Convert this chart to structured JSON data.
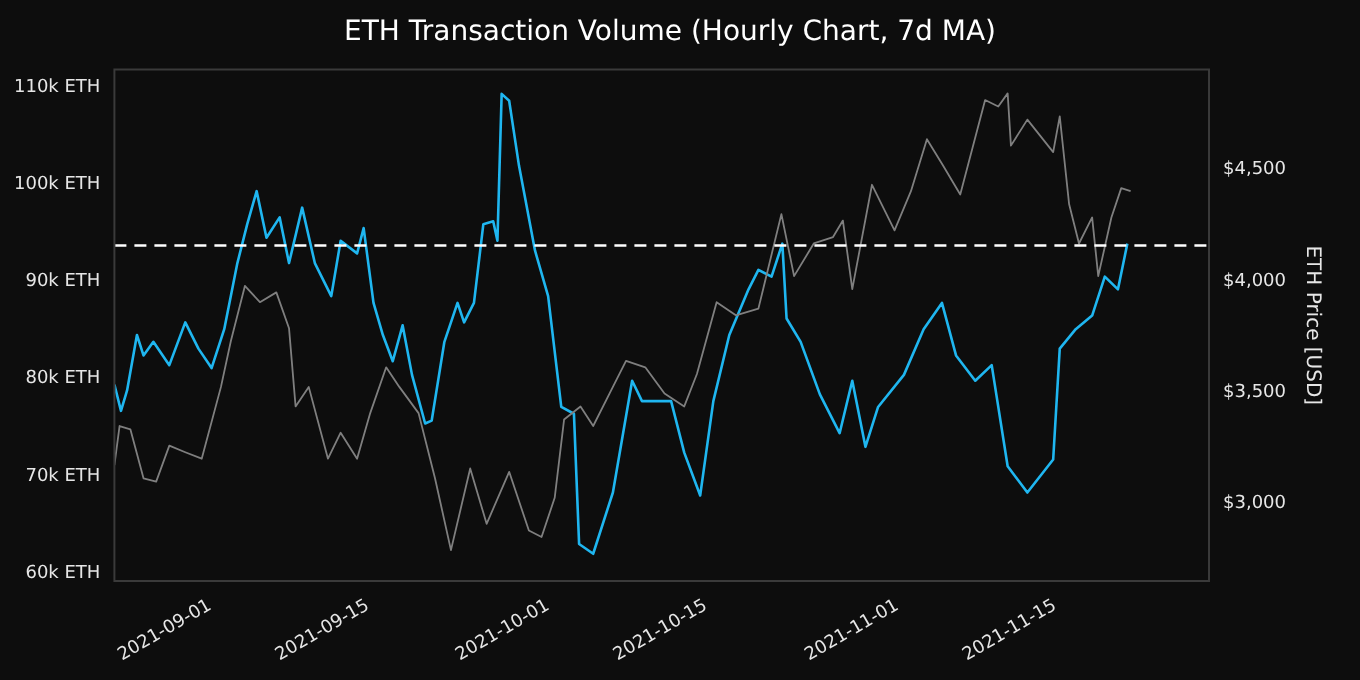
{
  "chart_data": {
    "type": "line",
    "title": "ETH Transaction Volume (Hourly Chart, 7d MA)",
    "y2label": "ETH Price [USD]",
    "xlim": [
      "2021-08-23T12:00",
      "2021-11-28T16:00"
    ],
    "xticks": [
      "2021-09-01",
      "2021-09-15",
      "2021-10-01",
      "2021-10-15",
      "2021-11-01",
      "2021-11-15"
    ],
    "ylim": [
      59200,
      111800
    ],
    "yticks": [
      {
        "value": 60000,
        "label": "60k ETH"
      },
      {
        "value": 70000,
        "label": "70k ETH"
      },
      {
        "value": 80000,
        "label": "80k ETH"
      },
      {
        "value": 90000,
        "label": "90k ETH"
      },
      {
        "value": 100000,
        "label": "100k ETH"
      },
      {
        "value": 110000,
        "label": "110k ETH"
      }
    ],
    "y2lim": [
      2650,
      4950
    ],
    "y2ticks": [
      {
        "value": 3000,
        "label": "$3,000"
      },
      {
        "value": 3500,
        "label": "$3,500"
      },
      {
        "value": 4000,
        "label": "$4,000"
      },
      {
        "value": 4500,
        "label": "$4,500"
      }
    ],
    "grid": false,
    "legend": false,
    "marker": "none",
    "line_style": "solid",
    "ref_lines": [
      {
        "axis": "y",
        "value": 93700,
        "color": "#ffffff",
        "line_style": "dashed"
      }
    ],
    "series": [
      {
        "color": "#7f7f7f",
        "axis": "y2",
        "x": [
          "2021-08-23T12:00",
          "2021-08-23T23:00",
          "2021-08-24T22:00",
          "2021-08-26T02:00",
          "2021-08-27T05:00",
          "2021-08-28T09:00",
          "2021-08-29T19:00",
          "2021-08-31T06:00",
          "2021-09-01T23:00",
          "2021-09-02T20:00",
          "2021-09-04T02:00",
          "2021-09-05T10:00",
          "2021-09-06T21:00",
          "2021-09-08T00:00",
          "2021-09-08T14:00",
          "2021-09-09T18:00",
          "2021-09-11T11:00",
          "2021-09-12T14:00",
          "2021-09-14T01:00",
          "2021-09-15T05:00",
          "2021-09-16T15:00",
          "2021-09-17T19:00",
          "2021-09-19T12:00",
          "2021-09-20T23:00",
          "2021-09-22T09:00",
          "2021-09-24T02:00",
          "2021-09-25T13:00",
          "2021-09-27T13:00",
          "2021-09-29T07:00",
          "2021-09-30T10:00",
          "2021-10-01T14:00",
          "2021-10-02T10:00",
          "2021-10-03T21:00",
          "2021-10-05T00:00",
          "2021-10-06T18:00",
          "2021-10-07T22:00",
          "2021-10-09T15:00",
          "2021-10-11T08:00",
          "2021-10-13T02:00",
          "2021-10-14T05:00",
          "2021-10-15T23:00",
          "2021-10-17T16:00",
          "2021-10-19T16:00",
          "2021-10-21T17:00",
          "2021-10-22T20:00",
          "2021-10-24T14:00",
          "2021-10-26T07:00",
          "2021-10-27T04:00",
          "2021-10-28T00:00",
          "2021-10-29T18:00",
          "2021-10-31T18:00",
          "2021-11-02T05:00",
          "2021-11-03T15:00",
          "2021-11-05T01:00",
          "2021-11-06T14:00",
          "2021-11-08T19:00",
          "2021-11-09T23:00",
          "2021-11-10T19:00",
          "2021-11-11T02:00",
          "2021-11-12T13:00",
          "2021-11-14T20:00",
          "2021-11-15T10:00",
          "2021-11-16T06:00",
          "2021-11-17T03:00",
          "2021-11-18T07:00",
          "2021-11-18T20:00",
          "2021-11-20T00:00",
          "2021-11-20T21:00",
          "2021-11-21T17:00"
        ],
        "values": [
          3171,
          3347,
          3332,
          3112,
          3097,
          3259,
          3229,
          3200,
          3523,
          3728,
          3977,
          3904,
          3948,
          3787,
          3435,
          3523,
          3200,
          3317,
          3200,
          3405,
          3611,
          3523,
          3405,
          3112,
          2789,
          3156,
          2907,
          3141,
          2877,
          2848,
          3024,
          3376,
          3435,
          3347,
          3523,
          3640,
          3611,
          3493,
          3435,
          3581,
          3904,
          3845,
          3875,
          4300,
          4021,
          4168,
          4197,
          4271,
          3963,
          4432,
          4227,
          4403,
          4637,
          4520,
          4388,
          4813,
          4784,
          4843,
          4608,
          4725,
          4579,
          4740,
          4344,
          4168,
          4285,
          4021,
          4285,
          4417,
          4403
        ]
      },
      {
        "color": "#1fb6f0",
        "x": [
          "2021-08-23T12:00",
          "2021-08-24T02:00",
          "2021-08-24T15:00",
          "2021-08-25T12:00",
          "2021-08-26T02:00",
          "2021-08-26T23:00",
          "2021-08-28T09:00",
          "2021-08-29T19:00",
          "2021-08-30T23:00",
          "2021-09-01T03:00",
          "2021-09-02T06:00",
          "2021-09-03T10:00",
          "2021-09-04T07:00",
          "2021-09-05T03:00",
          "2021-09-06T00:00",
          "2021-09-07T04:00",
          "2021-09-08T00:00",
          "2021-09-09T04:00",
          "2021-09-10T07:00",
          "2021-09-11T18:00",
          "2021-09-12T14:00",
          "2021-09-14T01:00",
          "2021-09-14T15:00",
          "2021-09-15T12:00",
          "2021-09-16T08:00",
          "2021-09-17T05:00",
          "2021-09-18T02:00",
          "2021-09-18T22:00",
          "2021-09-20T02:00",
          "2021-09-20T16:00",
          "2021-09-21T19:00",
          "2021-09-22T23:00",
          "2021-09-23T13:00",
          "2021-09-24T10:00",
          "2021-09-25T06:00",
          "2021-09-26T03:00",
          "2021-09-26T12:00",
          "2021-09-26T21:00",
          "2021-09-27T13:00",
          "2021-09-28T10:00",
          "2021-09-28T23:00",
          "2021-09-29T20:00",
          "2021-10-01T00:00",
          "2021-10-02T04:00",
          "2021-10-03T07:00",
          "2021-10-03T18:00",
          "2021-10-05T00:00",
          "2021-10-06T18:00",
          "2021-10-08T11:00",
          "2021-10-09T08:00",
          "2021-10-11T22:00",
          "2021-10-13T02:00",
          "2021-10-14T12:00",
          "2021-10-15T16:00",
          "2021-10-17T02:00",
          "2021-10-18T19:00",
          "2021-10-19T16:00",
          "2021-10-20T20:00",
          "2021-10-21T19:00",
          "2021-10-22T04:00",
          "2021-10-23T10:00",
          "2021-10-25T03:00",
          "2021-10-26T21:00",
          "2021-10-28T00:00",
          "2021-10-29T04:00",
          "2021-10-30T07:00",
          "2021-11-01T14:00",
          "2021-11-03T08:00",
          "2021-11-04T23:00",
          "2021-11-06T05:00",
          "2021-11-07T22:00",
          "2021-11-09T09:00",
          "2021-11-10T19:00",
          "2021-11-12T13:00",
          "2021-11-14T20:00",
          "2021-11-15T10:00",
          "2021-11-16T20:00",
          "2021-11-18T07:00",
          "2021-11-19T10:00",
          "2021-11-20T14:00",
          "2021-11-21T10:00"
        ],
        "values": [
          79400,
          76700,
          78800,
          84500,
          82400,
          83800,
          81400,
          85800,
          83100,
          81100,
          85100,
          91900,
          95900,
          99300,
          94500,
          96600,
          91900,
          97600,
          91900,
          88500,
          94200,
          92900,
          95500,
          87800,
          84500,
          81800,
          85500,
          80400,
          75400,
          75700,
          83800,
          87800,
          85800,
          87800,
          95900,
          96200,
          94200,
          109300,
          108600,
          101900,
          98600,
          93200,
          88500,
          77100,
          76400,
          63000,
          62000,
          68300,
          79800,
          77700,
          77700,
          72400,
          68000,
          77700,
          84500,
          89200,
          91200,
          90500,
          93900,
          86200,
          83800,
          78400,
          74400,
          79800,
          73000,
          77100,
          80400,
          85100,
          87800,
          82400,
          79800,
          81400,
          71000,
          68300,
          71700,
          83100,
          85100,
          86500,
          90500,
          89200,
          93900
        ]
      }
    ]
  }
}
